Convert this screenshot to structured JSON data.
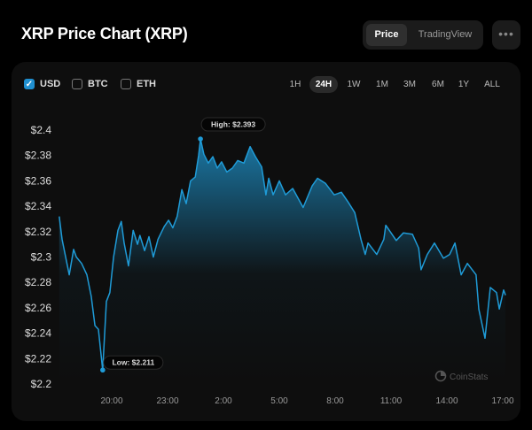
{
  "header": {
    "title": "XRP Price Chart (XRP)",
    "view_options": [
      "Price",
      "TradingView"
    ],
    "active_view": "Price",
    "more_icon": "ellipsis-icon"
  },
  "currencies": [
    {
      "label": "USD",
      "checked": true
    },
    {
      "label": "BTC",
      "checked": false
    },
    {
      "label": "ETH",
      "checked": false
    }
  ],
  "ranges": [
    "1H",
    "24H",
    "1W",
    "1M",
    "3M",
    "6M",
    "1Y",
    "ALL"
  ],
  "active_range": "24H",
  "watermark": "CoinStats",
  "colors": {
    "line": "#1f9bd7",
    "background": "#0e0e0e",
    "accent": "#1f8fd0"
  },
  "chart_data": {
    "type": "area",
    "ylim": [
      2.2,
      2.4
    ],
    "yticks": [
      "$2.2",
      "$2.22",
      "$2.24",
      "$2.26",
      "$2.28",
      "$2.3",
      "$2.32",
      "$2.34",
      "$2.36",
      "$2.38",
      "$2.4"
    ],
    "xticks": [
      "20:00",
      "23:00",
      "2:00",
      "5:00",
      "8:00",
      "11:00",
      "14:00",
      "17:00"
    ],
    "high_label": "High: $2.393",
    "low_label": "Low: $2.211",
    "high": {
      "time": "00:46",
      "price": 2.393
    },
    "low": {
      "time": "19:31",
      "price": 2.211
    },
    "grid": false,
    "points": [
      [
        "17:11",
        2.332
      ],
      [
        "17:20",
        2.314
      ],
      [
        "17:34",
        2.297
      ],
      [
        "17:43",
        2.286
      ],
      [
        "17:57",
        2.306
      ],
      [
        "18:06",
        2.3
      ],
      [
        "18:23",
        2.295
      ],
      [
        "18:40",
        2.286
      ],
      [
        "18:54",
        2.269
      ],
      [
        "19:06",
        2.246
      ],
      [
        "19:17",
        2.243
      ],
      [
        "19:31",
        2.211
      ],
      [
        "19:43",
        2.265
      ],
      [
        "19:54",
        2.272
      ],
      [
        "20:06",
        2.3
      ],
      [
        "20:20",
        2.321
      ],
      [
        "20:31",
        2.328
      ],
      [
        "20:40",
        2.311
      ],
      [
        "20:54",
        2.293
      ],
      [
        "21:09",
        2.321
      ],
      [
        "21:23",
        2.31
      ],
      [
        "21:31",
        2.317
      ],
      [
        "21:46",
        2.305
      ],
      [
        "22:00",
        2.316
      ],
      [
        "22:14",
        2.3
      ],
      [
        "22:29",
        2.314
      ],
      [
        "22:49",
        2.324
      ],
      [
        "23:03",
        2.329
      ],
      [
        "23:17",
        2.323
      ],
      [
        "23:31",
        2.332
      ],
      [
        "23:46",
        2.353
      ],
      [
        "00:00",
        2.342
      ],
      [
        "00:14",
        2.36
      ],
      [
        "00:29",
        2.363
      ],
      [
        "00:40",
        2.38
      ],
      [
        "00:46",
        2.393
      ],
      [
        "00:57",
        2.381
      ],
      [
        "01:11",
        2.374
      ],
      [
        "01:26",
        2.379
      ],
      [
        "01:40",
        2.37
      ],
      [
        "01:54",
        2.375
      ],
      [
        "02:11",
        2.367
      ],
      [
        "02:29",
        2.37
      ],
      [
        "02:46",
        2.376
      ],
      [
        "03:06",
        2.374
      ],
      [
        "03:26",
        2.387
      ],
      [
        "03:43",
        2.379
      ],
      [
        "04:03",
        2.371
      ],
      [
        "04:17",
        2.349
      ],
      [
        "04:26",
        2.362
      ],
      [
        "04:40",
        2.349
      ],
      [
        "05:00",
        2.36
      ],
      [
        "05:20",
        2.349
      ],
      [
        "05:43",
        2.354
      ],
      [
        "06:17",
        2.339
      ],
      [
        "06:46",
        2.356
      ],
      [
        "07:03",
        2.362
      ],
      [
        "07:29",
        2.358
      ],
      [
        "07:57",
        2.349
      ],
      [
        "08:20",
        2.351
      ],
      [
        "08:40",
        2.344
      ],
      [
        "09:03",
        2.335
      ],
      [
        "09:23",
        2.314
      ],
      [
        "09:37",
        2.302
      ],
      [
        "09:46",
        2.311
      ],
      [
        "10:14",
        2.302
      ],
      [
        "10:37",
        2.314
      ],
      [
        "10:43",
        2.325
      ],
      [
        "11:17",
        2.313
      ],
      [
        "11:40",
        2.319
      ],
      [
        "12:09",
        2.318
      ],
      [
        "12:29",
        2.307
      ],
      [
        "12:37",
        2.29
      ],
      [
        "12:57",
        2.302
      ],
      [
        "13:20",
        2.311
      ],
      [
        "13:49",
        2.299
      ],
      [
        "14:09",
        2.302
      ],
      [
        "14:26",
        2.311
      ],
      [
        "14:46",
        2.286
      ],
      [
        "15:06",
        2.295
      ],
      [
        "15:34",
        2.286
      ],
      [
        "15:43",
        2.259
      ],
      [
        "16:03",
        2.236
      ],
      [
        "16:20",
        2.276
      ],
      [
        "16:40",
        2.272
      ],
      [
        "16:49",
        2.259
      ],
      [
        "17:03",
        2.274
      ],
      [
        "17:09",
        2.27
      ]
    ]
  }
}
